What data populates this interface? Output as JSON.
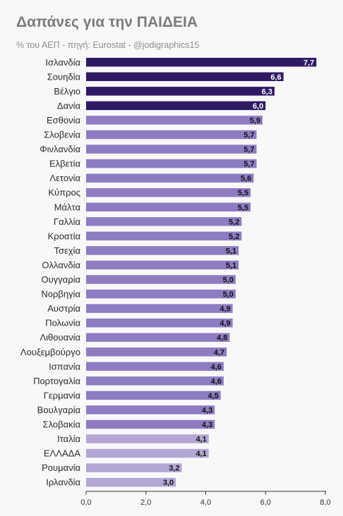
{
  "header": {
    "title": "Δαπάνες για την ΠΑΙΔΕΙΑ",
    "subtitle": "% του ΑΕΠ - πηγή: Eurostat - @jodigraphics15"
  },
  "colors": {
    "top": "#2e1a63",
    "mid": "#8e7cc3",
    "low": "#b4a7d6"
  },
  "chart_data": {
    "type": "bar",
    "orientation": "horizontal",
    "title": "Δαπάνες για την ΠΑΙΔΕΙΑ",
    "subtitle": "% του ΑΕΠ - πηγή: Eurostat - @jodigraphics15",
    "categories": [
      "Ισλανδία",
      "Σουηδία",
      "Βέλγιο",
      "Δανία",
      "Εσθονία",
      "Σλοβενία",
      "Φινλανδία",
      "Ελβετία",
      "Λετονία",
      "Κύπρος",
      "Μάλτα",
      "Γαλλία",
      "Κροατία",
      "Τσεχία",
      "Ολλανδία",
      "Ουγγαρία",
      "Νορβηγία",
      "Αυστρία",
      "Πολωνία",
      "Λιθουανία",
      "Λουξεμβούργο",
      "Ισπανία",
      "Πορτογαλία",
      "Γερμανία",
      "Βουλγαρία",
      "Σλοβακία",
      "Ιταλία",
      "ΕΛΛΑΔΑ",
      "Ρουμανία",
      "Ιρλανδία"
    ],
    "values": [
      7.7,
      6.6,
      6.3,
      6.0,
      5.9,
      5.7,
      5.7,
      5.7,
      5.6,
      5.5,
      5.5,
      5.2,
      5.2,
      5.1,
      5.1,
      5.0,
      5.0,
      4.9,
      4.9,
      4.8,
      4.7,
      4.6,
      4.6,
      4.5,
      4.3,
      4.3,
      4.1,
      4.1,
      3.2,
      3.0
    ],
    "value_labels": [
      "7,7",
      "6,6",
      "6,3",
      "6,0",
      "5,9",
      "5,7",
      "5,7",
      "5,7",
      "5,6",
      "5,5",
      "5,5",
      "5,2",
      "5,2",
      "5,1",
      "5,1",
      "5,0",
      "5,0",
      "4,9",
      "4,9",
      "4,8",
      "4,7",
      "4,6",
      "4,6",
      "4,5",
      "4,3",
      "4,3",
      "4,1",
      "4,1",
      "3,2",
      "3,0"
    ],
    "color_groups": [
      "top",
      "top",
      "top",
      "top",
      "mid",
      "mid",
      "mid",
      "mid",
      "mid",
      "mid",
      "mid",
      "mid",
      "mid",
      "mid",
      "mid",
      "mid",
      "mid",
      "mid",
      "mid",
      "mid",
      "mid",
      "mid",
      "mid",
      "mid",
      "mid",
      "mid",
      "low",
      "low",
      "low",
      "low"
    ],
    "xlim": [
      0,
      8
    ],
    "xticks": [
      0,
      2,
      4,
      6,
      8
    ],
    "xtick_labels": [
      "0,0",
      "2,0",
      "4,0",
      "6,0",
      "8,0"
    ],
    "xlabel": "",
    "ylabel": "",
    "grid": false
  }
}
